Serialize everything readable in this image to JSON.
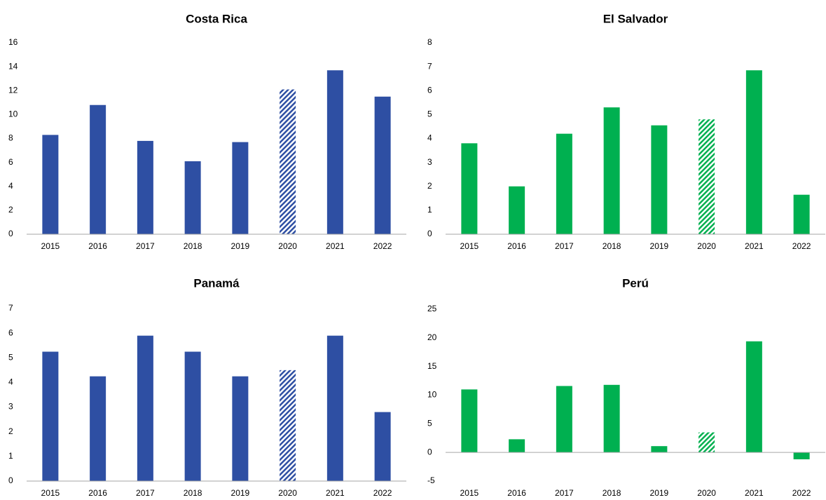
{
  "chart_data": [
    {
      "type": "bar",
      "title": "Costa Rica",
      "categories": [
        "2015",
        "2016",
        "2017",
        "2018",
        "2019",
        "2020",
        "2021",
        "2022"
      ],
      "values": [
        8.3,
        10.8,
        7.8,
        6.1,
        7.7,
        12.1,
        13.7,
        11.5
      ],
      "color": "#2e4fa3",
      "patterned": [
        false,
        false,
        false,
        false,
        false,
        true,
        false,
        false
      ],
      "ylim": [
        0,
        16
      ],
      "yticks": [
        0,
        2,
        4,
        6,
        8,
        10,
        12,
        14,
        16
      ],
      "grid": false
    },
    {
      "type": "bar",
      "title": "El Salvador",
      "categories": [
        "2015",
        "2016",
        "2017",
        "2018",
        "2019",
        "2020",
        "2021",
        "2022"
      ],
      "values": [
        3.8,
        2.0,
        4.2,
        5.3,
        4.55,
        4.8,
        6.85,
        1.65
      ],
      "color": "#00b050",
      "patterned": [
        false,
        false,
        false,
        false,
        false,
        true,
        false,
        false
      ],
      "ylim": [
        0,
        8
      ],
      "yticks": [
        0,
        1,
        2,
        3,
        4,
        5,
        6,
        7,
        8
      ],
      "grid": false
    },
    {
      "type": "bar",
      "title": "Panamá",
      "categories": [
        "2015",
        "2016",
        "2017",
        "2018",
        "2019",
        "2020",
        "2021",
        "2022"
      ],
      "values": [
        5.25,
        4.25,
        5.9,
        5.25,
        4.25,
        4.5,
        5.9,
        2.8
      ],
      "color": "#2e4fa3",
      "patterned": [
        false,
        false,
        false,
        false,
        false,
        true,
        false,
        false
      ],
      "ylim": [
        0,
        7
      ],
      "yticks": [
        0,
        1,
        2,
        3,
        4,
        5,
        6,
        7
      ],
      "grid": false
    },
    {
      "type": "bar",
      "title": "Perú",
      "categories": [
        "2015",
        "2016",
        "2017",
        "2018",
        "2019",
        "2020",
        "2021",
        "2022"
      ],
      "values": [
        11,
        2.3,
        11.6,
        11.8,
        1.1,
        3.5,
        19.4,
        -1.2
      ],
      "color": "#00b050",
      "patterned": [
        false,
        false,
        false,
        false,
        false,
        true,
        false,
        false
      ],
      "ylim": [
        -5,
        25
      ],
      "yticks": [
        -5,
        0,
        5,
        10,
        15,
        20,
        25
      ],
      "grid": false
    }
  ]
}
